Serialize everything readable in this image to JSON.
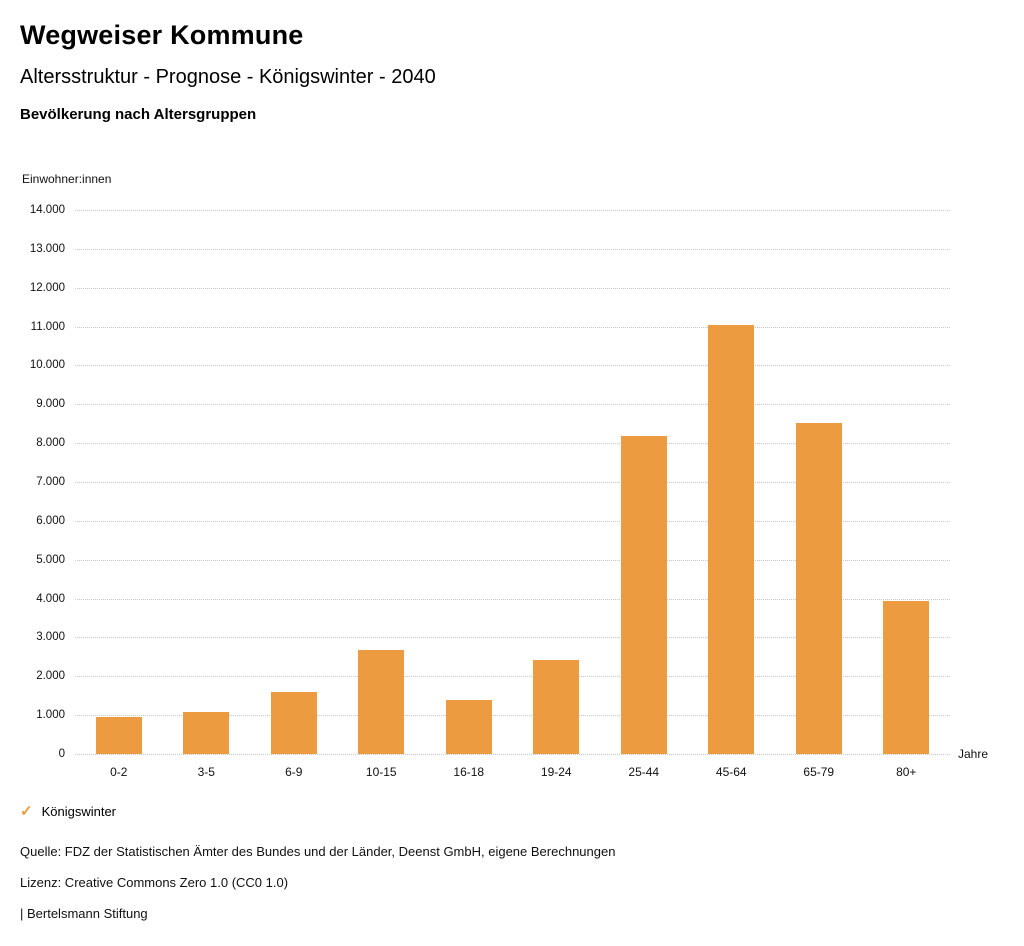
{
  "header": {
    "title": "Wegweiser Kommune",
    "subtitle": "Altersstruktur - Prognose - Königswinter - 2040"
  },
  "chart_data": {
    "type": "bar",
    "title": "Bevölkerung nach Altersgruppen",
    "ylabel": "Einwohner:innen",
    "xlabel": "Jahre",
    "categories": [
      "0-2",
      "3-5",
      "6-9",
      "10-15",
      "16-18",
      "19-24",
      "25-44",
      "45-64",
      "65-79",
      "80+"
    ],
    "series": [
      {
        "name": "Königswinter",
        "color": "#ED9B40",
        "values": [
          950,
          1070,
          1600,
          2670,
          1400,
          2420,
          8180,
          11040,
          8510,
          3930
        ]
      }
    ],
    "ylim": [
      0,
      14000
    ],
    "yticks": [
      {
        "value": 0,
        "label": "0"
      },
      {
        "value": 1000,
        "label": "1.000"
      },
      {
        "value": 2000,
        "label": "2.000"
      },
      {
        "value": 3000,
        "label": "3.000"
      },
      {
        "value": 4000,
        "label": "4.000"
      },
      {
        "value": 5000,
        "label": "5.000"
      },
      {
        "value": 6000,
        "label": "6.000"
      },
      {
        "value": 7000,
        "label": "7.000"
      },
      {
        "value": 8000,
        "label": "8.000"
      },
      {
        "value": 9000,
        "label": "9.000"
      },
      {
        "value": 10000,
        "label": "10.000"
      },
      {
        "value": 11000,
        "label": "11.000"
      },
      {
        "value": 12000,
        "label": "12.000"
      },
      {
        "value": 13000,
        "label": "13.000"
      },
      {
        "value": 14000,
        "label": "14.000"
      }
    ],
    "grid": "horizontal-dotted",
    "legend_position": "bottom-left"
  },
  "legend": {
    "label": "Königswinter",
    "check_icon": "checkmark",
    "check_icon_color": "#ED9B40"
  },
  "footer": {
    "source": "Quelle: FDZ der Statistischen Ämter des Bundes und der Länder, Deenst GmbH, eigene Berechnungen",
    "license": "Lizenz: Creative Commons Zero 1.0 (CC0 1.0)",
    "attribution": "| Bertelsmann Stiftung"
  }
}
